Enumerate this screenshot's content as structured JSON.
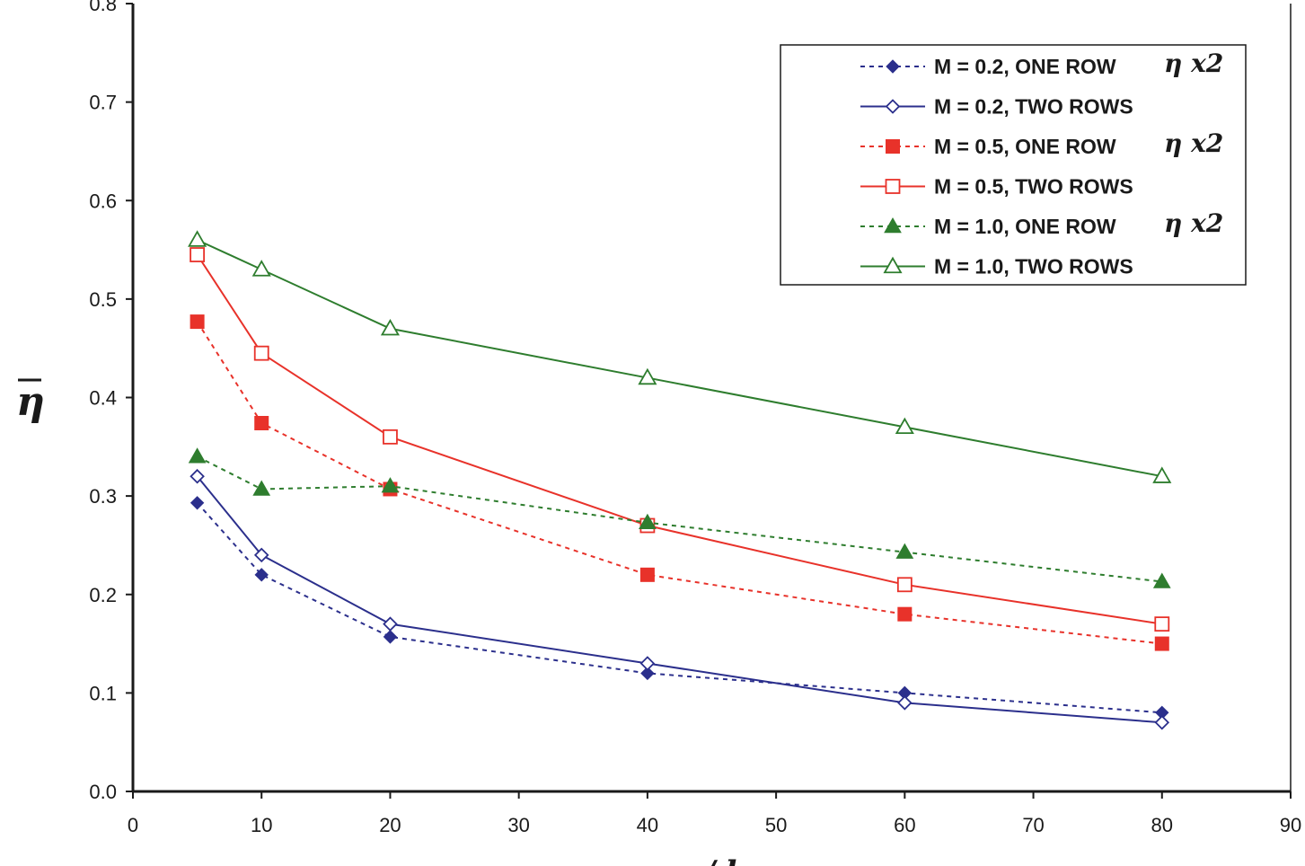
{
  "chart_data": {
    "type": "line",
    "title": "",
    "xlabel": "x/d",
    "ylabel": "η",
    "xlim": [
      0,
      90
    ],
    "ylim": [
      0.0,
      0.8
    ],
    "xticks": [
      0,
      10,
      20,
      30,
      40,
      50,
      60,
      70,
      80,
      90
    ],
    "yticks": [
      0.0,
      0.1,
      0.2,
      0.3,
      0.4,
      0.5,
      0.6,
      0.7,
      0.8
    ],
    "xtick_labels": [
      "0",
      "10",
      "20",
      "30",
      "40",
      "50",
      "60",
      "70",
      "80",
      "90"
    ],
    "ytick_labels": [
      "0.0",
      "0.1",
      "0.2",
      "0.3",
      "0.4",
      "0.5",
      "0.6",
      "0.7",
      "0.8"
    ],
    "grid": false,
    "legend_position": "top-right",
    "x": [
      5,
      10,
      20,
      40,
      60,
      80
    ],
    "series": [
      {
        "name": "M = 0.2, ONE ROW",
        "note": "η x2",
        "color": "#2b2f8c",
        "dash": "dotted",
        "marker": "diamond",
        "filled": true,
        "values": [
          0.293,
          0.22,
          0.157,
          0.12,
          0.1,
          0.08
        ]
      },
      {
        "name": "M = 0.2, TWO ROWS",
        "note": "",
        "color": "#2b2f8c",
        "dash": "solid",
        "marker": "diamond",
        "filled": false,
        "values": [
          0.32,
          0.24,
          0.17,
          0.13,
          0.09,
          0.07
        ]
      },
      {
        "name": "M = 0.5, ONE ROW",
        "note": "η x2",
        "color": "#e8322a",
        "dash": "dotted",
        "marker": "square",
        "filled": true,
        "values": [
          0.477,
          0.374,
          0.307,
          0.22,
          0.18,
          0.15
        ]
      },
      {
        "name": "M = 0.5, TWO ROWS",
        "note": "",
        "color": "#e8322a",
        "dash": "solid",
        "marker": "square",
        "filled": false,
        "values": [
          0.545,
          0.445,
          0.36,
          0.27,
          0.21,
          0.17
        ]
      },
      {
        "name": "M = 1.0, ONE ROW",
        "note": "η x2",
        "color": "#2e7d2e",
        "dash": "dotted",
        "marker": "triangle",
        "filled": true,
        "values": [
          0.34,
          0.307,
          0.31,
          0.273,
          0.243,
          0.213
        ]
      },
      {
        "name": "M = 1.0, TWO ROWS",
        "note": "",
        "color": "#2e7d2e",
        "dash": "solid",
        "marker": "triangle",
        "filled": false,
        "values": [
          0.56,
          0.53,
          0.47,
          0.42,
          0.37,
          0.32
        ]
      }
    ]
  }
}
